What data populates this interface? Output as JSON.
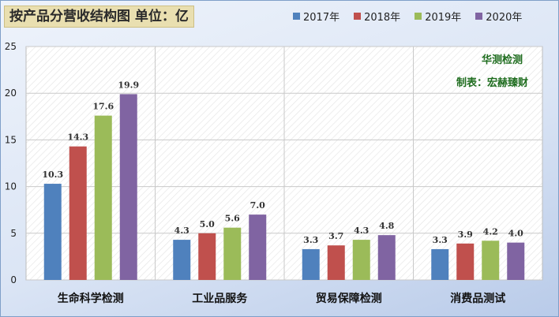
{
  "chart_data": {
    "type": "bar",
    "title": "按产品分营收结构图 单位：亿",
    "categories": [
      "生命科学检测",
      "工业品服务",
      "贸易保障检测",
      "消费品测试"
    ],
    "series": [
      {
        "name": "2017年",
        "values": [
          10.3,
          4.3,
          3.3,
          3.3
        ]
      },
      {
        "name": "2018年",
        "values": [
          14.3,
          5.0,
          3.7,
          3.9
        ]
      },
      {
        "name": "2019年",
        "values": [
          17.6,
          5.6,
          4.3,
          4.2
        ]
      },
      {
        "name": "2020年",
        "values": [
          19.9,
          7.0,
          4.8,
          4.0
        ]
      }
    ],
    "value_labels": [
      [
        "10.3",
        "4.3",
        "3.3",
        "3.3"
      ],
      [
        "14.3",
        "5.0",
        "3.7",
        "3.9"
      ],
      [
        "17.6",
        "5.6",
        "4.3",
        "4.2"
      ],
      [
        "19.9",
        "7.0",
        "4.8",
        "4.0"
      ]
    ],
    "yticks": [
      "0",
      "5",
      "10",
      "15",
      "20",
      "25"
    ],
    "ylim": [
      0,
      25
    ],
    "legend": "top-right",
    "grid": true,
    "annotations": [
      "华测检测",
      "制表：宏赫臻财"
    ],
    "colors": [
      "#4f81bd",
      "#c0504d",
      "#9bbb59",
      "#8064a2"
    ]
  }
}
